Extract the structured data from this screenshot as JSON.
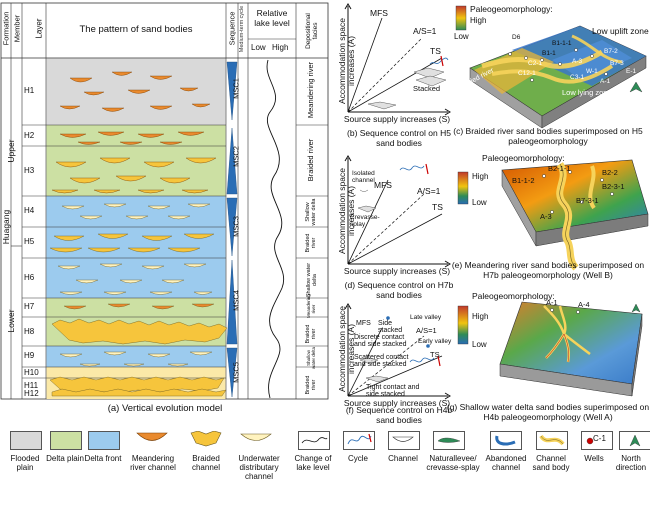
{
  "panel_a": {
    "header": {
      "formation": "Formation",
      "member": "Member",
      "layer": "Layer",
      "pattern": "The pattern of sand bodies",
      "sequence": "Sequence",
      "medium_term_cycle": "Medium-term cycle",
      "lake_level": "Relative lake level",
      "low": "Low",
      "high": "High",
      "facies": "Depositional facies"
    },
    "formation_name": "Huagang",
    "members": [
      "Upper",
      "Lower"
    ],
    "layers": [
      "H1",
      "H2",
      "H3",
      "H4",
      "H5",
      "H6",
      "H7",
      "H8",
      "H9",
      "H10",
      "H11",
      "H12"
    ],
    "sequences": [
      "MSC1",
      "MSC2",
      "MSC3",
      "MSC4",
      "MSC5"
    ],
    "facies": [
      "Meandering river",
      "Braided river",
      "Shallow water delta",
      "Braided river",
      "Shallow water delta",
      "Meandering river",
      "Braided river",
      "Shallow water delta",
      "Braided river"
    ],
    "caption": "(a) Vertical evolution model"
  },
  "panel_b": {
    "ylabel": "Accommodation space increases (A)",
    "xlabel": "Source supply increases (S)",
    "labels": {
      "mfs": "MFS",
      "as1": "A/S=1",
      "ts": "TS",
      "stacked": "Stacked"
    },
    "caption": "(b) Sequence control on H5 sand bodies"
  },
  "panel_c": {
    "title": "Paleogeomorphology:",
    "high": "High",
    "low": "Low",
    "zones": [
      "Low uplift zone",
      "Low lying zone",
      "Braided river"
    ],
    "wells": [
      "D6",
      "B1-1-1",
      "B1-1",
      "B7-2",
      "A-3",
      "B7-3",
      "W-1",
      "C2-1",
      "C12-1",
      "C3-1",
      "A-1",
      "E-1"
    ],
    "caption": "(c) Braided river sand bodies superimposed on H5 paleogeomorphology"
  },
  "panel_d": {
    "ylabel": "Accommodation space increases (A)",
    "xlabel": "Source supply increases (S)",
    "labels": {
      "isolated": "Isolated channel",
      "mfs": "MFS",
      "as1": "A/S=1",
      "ts": "TS",
      "crevasse": "Crevasse-splay"
    },
    "caption": "(d) Sequence control on H7b sand bodies"
  },
  "panel_e": {
    "title": "Paleogeomorphology:",
    "high": "High",
    "low": "Low",
    "wells": [
      "B2-1-1",
      "B1-1-2",
      "B2-2",
      "B2-3-1",
      "B7-3-1",
      "A-3"
    ],
    "caption": "(e) Meandering river sand bodies superimposed on H7b paleogeomorphology (Well B)"
  },
  "panel_f": {
    "ylabel": "Accommodation space increases (A)",
    "xlabel": "Source supply increases (S)",
    "labels": {
      "mfs": "MFS",
      "side": "Side stacked",
      "late": "Late valley",
      "as1": "A/S=1",
      "discrete": "Discrete contact and side stacked",
      "early": "Early valley",
      "ts": "TS",
      "scattered": "Scattered contact and side stacked",
      "tight": "Tight contact and side stacked"
    },
    "caption": "(f) Sequence control on H4b sand bodies"
  },
  "panel_g": {
    "title": "Paleogeomorphology:",
    "high": "High",
    "low": "Low",
    "wells": [
      "A-1",
      "A-4"
    ],
    "caption": "(g) Shallow water delta sand bodies superimposed on H4b paleogeomorphology (Well A)"
  },
  "legend": [
    {
      "label": "Flooded plain",
      "color": "#d9d9d9"
    },
    {
      "label": "Delta plain",
      "color": "#cce0a3"
    },
    {
      "label": "Delta front",
      "color": "#9ccbee"
    },
    {
      "label": "Meandering river channel",
      "color": "#e98a2e"
    },
    {
      "label": "Braided channel",
      "color": "#f6c53c"
    },
    {
      "label": "Underwater distributary channel",
      "color": "#fff3bf"
    },
    {
      "label": "Change of lake level",
      "color": "#ffffff"
    },
    {
      "label": "Cycle",
      "color": "#ffffff"
    },
    {
      "label": "Channel",
      "color": "#ffffff"
    },
    {
      "label": "Naturallevee/ crevasse-splay",
      "color": "#ffffff"
    },
    {
      "label": "Abandoned channel",
      "color": "#ffffff"
    },
    {
      "label": "Channel sand body",
      "color": "#ffffff"
    },
    {
      "label": "Wells",
      "color": "#ffffff"
    },
    {
      "label": "North direction",
      "color": "#ffffff"
    }
  ],
  "legend_well": "C-1"
}
